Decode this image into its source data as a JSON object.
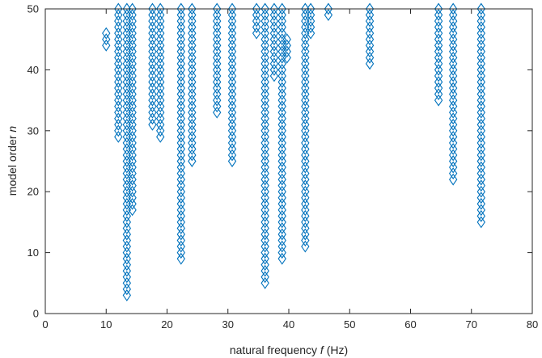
{
  "chart_data": {
    "type": "scatter",
    "title": "",
    "xlabel_parts": [
      "natural frequency ",
      "f",
      " (Hz)"
    ],
    "ylabel_parts": [
      "model order ",
      "n"
    ],
    "xlim": [
      0,
      80
    ],
    "ylim": [
      0,
      50
    ],
    "xticks": [
      "0",
      "10",
      "20",
      "30",
      "40",
      "50",
      "60",
      "70",
      "80"
    ],
    "yticks": [
      "0",
      "10",
      "20",
      "30",
      "40",
      "50"
    ],
    "grid": false,
    "marker": "diamond",
    "marker_color": "#0072BD",
    "series": [
      {
        "columns": [
          {
            "x": 10.0,
            "n_min": 44,
            "n_max": 46
          },
          {
            "x": 12.0,
            "n_min": 29,
            "n_max": 50
          },
          {
            "x": 13.4,
            "n_min": 3,
            "n_max": 50
          },
          {
            "x": 14.3,
            "n_min": 17,
            "n_max": 50
          },
          {
            "x": 17.6,
            "n_min": 31,
            "n_max": 50
          },
          {
            "x": 18.9,
            "n_min": 29,
            "n_max": 50
          },
          {
            "x": 22.3,
            "n_min": 9,
            "n_max": 50
          },
          {
            "x": 24.1,
            "n_min": 25,
            "n_max": 50
          },
          {
            "x": 28.2,
            "n_min": 33,
            "n_max": 50
          },
          {
            "x": 30.7,
            "n_min": 25,
            "n_max": 50
          },
          {
            "x": 34.7,
            "n_min": 46,
            "n_max": 50
          },
          {
            "x": 36.1,
            "n_min": 5,
            "n_max": 50
          },
          {
            "x": 37.6,
            "n_min": 39,
            "n_max": 50
          },
          {
            "x": 38.9,
            "n_min": 9,
            "n_max": 50
          },
          {
            "x": 39.7,
            "n_min": 42,
            "n_max": 45
          },
          {
            "x": 42.7,
            "n_min": 11,
            "n_max": 50
          },
          {
            "x": 43.6,
            "n_min": 46,
            "n_max": 50
          },
          {
            "x": 46.5,
            "n_min": 49,
            "n_max": 50
          },
          {
            "x": 53.3,
            "n_min": 41,
            "n_max": 50
          },
          {
            "x": 64.6,
            "n_min": 35,
            "n_max": 50
          },
          {
            "x": 67.0,
            "n_min": 22,
            "n_max": 50
          },
          {
            "x": 71.6,
            "n_min": 15,
            "n_max": 50
          }
        ]
      }
    ]
  }
}
